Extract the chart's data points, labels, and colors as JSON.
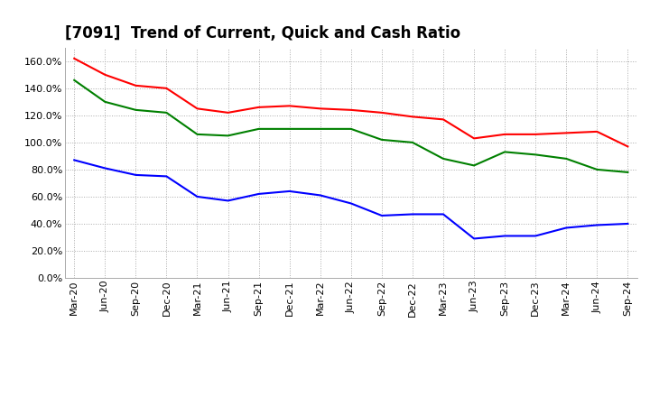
{
  "title": "[7091]  Trend of Current, Quick and Cash Ratio",
  "x_labels": [
    "Mar-20",
    "Jun-20",
    "Sep-20",
    "Dec-20",
    "Mar-21",
    "Jun-21",
    "Sep-21",
    "Dec-21",
    "Mar-22",
    "Jun-22",
    "Sep-22",
    "Dec-22",
    "Mar-23",
    "Jun-23",
    "Sep-23",
    "Dec-23",
    "Mar-24",
    "Jun-24",
    "Sep-24"
  ],
  "current_ratio": [
    1.62,
    1.5,
    1.42,
    1.4,
    1.25,
    1.22,
    1.26,
    1.27,
    1.25,
    1.24,
    1.22,
    1.19,
    1.17,
    1.03,
    1.06,
    1.06,
    1.07,
    1.08,
    0.97
  ],
  "quick_ratio": [
    1.46,
    1.3,
    1.24,
    1.22,
    1.06,
    1.05,
    1.1,
    1.1,
    1.1,
    1.1,
    1.02,
    1.0,
    0.88,
    0.83,
    0.93,
    0.91,
    0.88,
    0.8,
    0.78
  ],
  "cash_ratio": [
    0.87,
    0.81,
    0.76,
    0.75,
    0.6,
    0.57,
    0.62,
    0.64,
    0.61,
    0.55,
    0.46,
    0.47,
    0.47,
    0.29,
    0.31,
    0.31,
    0.37,
    0.39,
    0.4
  ],
  "current_color": "#FF0000",
  "quick_color": "#008000",
  "cash_color": "#0000FF",
  "ylim": [
    0.0,
    1.7
  ],
  "yticks": [
    0.0,
    0.2,
    0.4,
    0.6,
    0.8,
    1.0,
    1.2,
    1.4,
    1.6
  ],
  "background_color": "#FFFFFF",
  "grid_color": "#AAAAAA",
  "title_fontsize": 12,
  "legend_fontsize": 9,
  "tick_fontsize": 8,
  "line_width": 1.5
}
